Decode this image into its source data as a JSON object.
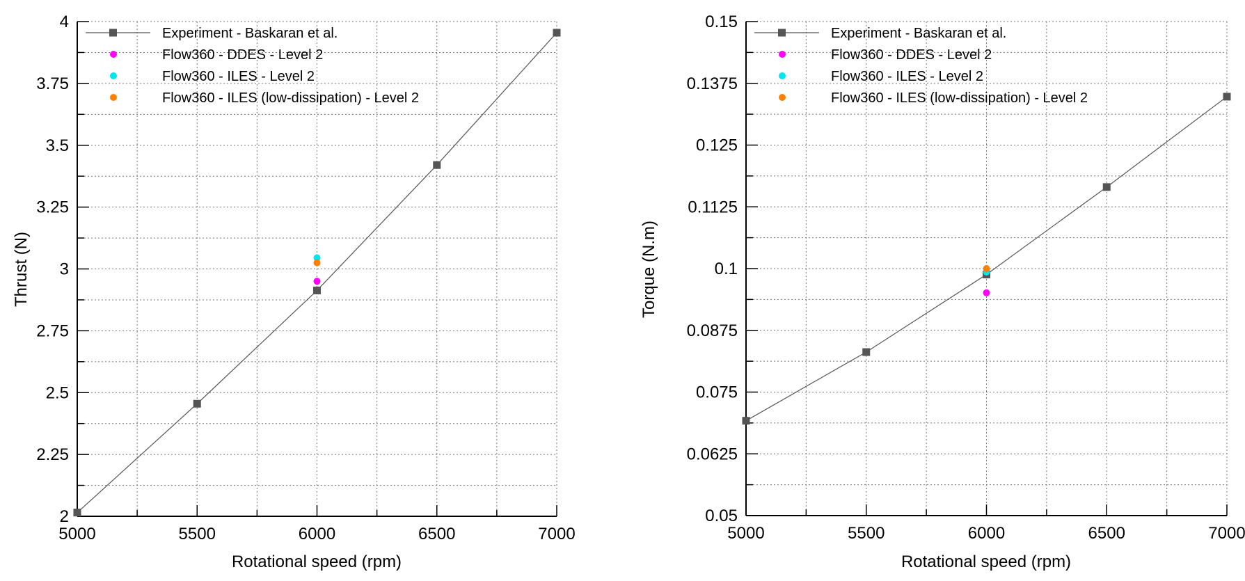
{
  "chart_data": [
    {
      "type": "line",
      "xlabel": "Rotational speed (rpm)",
      "ylabel": "Thrust (N)",
      "xlim": [
        5000,
        7000
      ],
      "ylim": [
        2,
        4
      ],
      "x_ticks": [
        "5000",
        "5500",
        "6000",
        "6500",
        "7000"
      ],
      "y_ticks": [
        "2",
        "2.25",
        "2.5",
        "2.75",
        "3",
        "3.25",
        "3.5",
        "3.75",
        "4"
      ],
      "grid": true,
      "legend_position": "top-left",
      "series": [
        {
          "name": "Experiment - Baskaran et al.",
          "marker": "square",
          "line": true,
          "color": "#555555",
          "x": [
            5000,
            5500,
            6000,
            6500,
            7000
          ],
          "y": [
            2.015,
            2.455,
            2.913,
            3.42,
            3.955
          ]
        },
        {
          "name": "Flow360 - DDES - Level 2",
          "marker": "circle",
          "line": false,
          "color": "#ff00ff",
          "x": [
            6000
          ],
          "y": [
            2.95
          ]
        },
        {
          "name": "Flow360 - ILES - Level 2",
          "marker": "circle",
          "line": false,
          "color": "#00e5ee",
          "x": [
            6000
          ],
          "y": [
            3.045
          ]
        },
        {
          "name": "Flow360 - ILES (low-dissipation) - Level 2",
          "marker": "circle",
          "line": false,
          "color": "#ff8000",
          "x": [
            6000
          ],
          "y": [
            3.025
          ]
        }
      ]
    },
    {
      "type": "line",
      "xlabel": "Rotational speed (rpm)",
      "ylabel": "Torque (N.m)",
      "xlim": [
        5000,
        7000
      ],
      "ylim": [
        0.05,
        0.15
      ],
      "x_ticks": [
        "5000",
        "5500",
        "6000",
        "6500",
        "7000"
      ],
      "y_ticks": [
        "0.05",
        "0.0625",
        "0.075",
        "0.0875",
        "0.1",
        "0.1125",
        "0.125",
        "0.1375",
        "0.15"
      ],
      "grid": true,
      "legend_position": "top-left",
      "series": [
        {
          "name": "Experiment - Baskaran et al.",
          "marker": "square",
          "line": true,
          "color": "#555555",
          "x": [
            5000,
            5500,
            6000,
            6500,
            7000
          ],
          "y": [
            0.0692,
            0.0831,
            0.0988,
            0.1165,
            0.1348
          ]
        },
        {
          "name": "Flow360 - DDES - Level 2",
          "marker": "circle",
          "line": false,
          "color": "#ff00ff",
          "x": [
            6000
          ],
          "y": [
            0.0951
          ]
        },
        {
          "name": "Flow360 - ILES - Level 2",
          "marker": "circle",
          "line": false,
          "color": "#00e5ee",
          "x": [
            6000
          ],
          "y": [
            0.0993
          ]
        },
        {
          "name": "Flow360 - ILES (low-dissipation) - Level 2",
          "marker": "circle",
          "line": false,
          "color": "#ff8000",
          "x": [
            6000
          ],
          "y": [
            0.1
          ]
        }
      ]
    }
  ]
}
